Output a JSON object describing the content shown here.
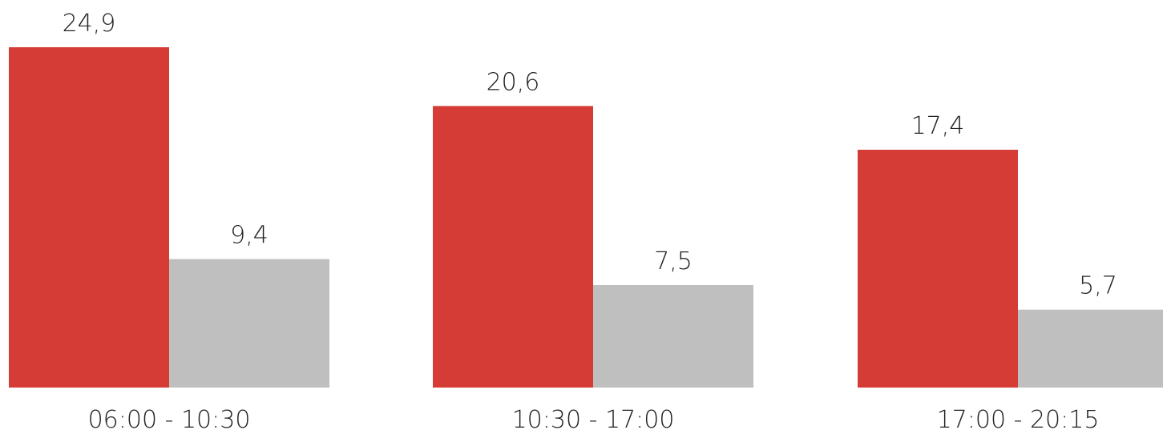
{
  "chart_data": {
    "type": "bar",
    "categories": [
      "06:00 - 10:30",
      "10:30 - 17:00",
      "17:00 - 20:15"
    ],
    "series": [
      {
        "values": [
          24.9,
          20.6,
          17.4
        ],
        "labels": [
          "24,9",
          "20,6",
          "17,4"
        ],
        "color": "#d43c35"
      },
      {
        "values": [
          9.4,
          7.5,
          5.7
        ],
        "labels": [
          "9,4",
          "7,5",
          "5,7"
        ],
        "color": "#bfbfbf"
      }
    ],
    "title": "",
    "xlabel": "",
    "ylabel": "",
    "ylim": [
      0,
      24.9
    ],
    "grid": false,
    "legend": "none"
  }
}
